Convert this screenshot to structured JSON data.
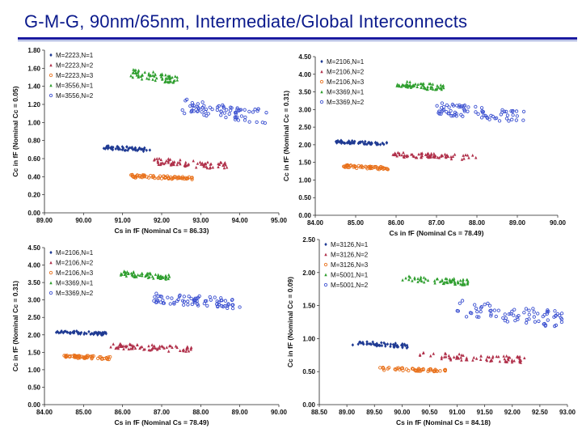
{
  "title": "G-M-G, 90nm/65nm, Intermediate/Global Interconnects",
  "chart_data": [
    {
      "type": "scatter",
      "xlabel": "Cs in fF (Nominal Cs = 86.33)",
      "ylabel": "Cc in fF (Nominal Cc = 0.05)",
      "xlim": [
        89.0,
        95.0
      ],
      "ylim": [
        0.0,
        1.8
      ],
      "xticks": [
        "89.00",
        "90.00",
        "91.00",
        "92.00",
        "93.00",
        "94.00",
        "95.00"
      ],
      "yticks": [
        "0.00",
        "0.20",
        "0.40",
        "0.60",
        "0.80",
        "1.00",
        "1.20",
        "1.40",
        "1.60",
        "1.80"
      ],
      "legend_position": "top-left",
      "series": [
        {
          "name": "M=2223,N=1",
          "color": "#1f3a93",
          "marker": "diamond",
          "x_range": [
            90.5,
            91.7
          ],
          "y_range": [
            0.68,
            0.74
          ],
          "points": 55
        },
        {
          "name": "M=2223,N=2",
          "color": "#b0304a",
          "marker": "triangle",
          "x_range": [
            91.8,
            93.7
          ],
          "y_range": [
            0.49,
            0.6
          ],
          "points": 75
        },
        {
          "name": "M=2223,N=3",
          "color": "#e8701a",
          "marker": "circle",
          "x_range": [
            91.2,
            92.8
          ],
          "y_range": [
            0.37,
            0.42
          ],
          "points": 65
        },
        {
          "name": "M=3556,N=1",
          "color": "#2e9e2e",
          "marker": "triangle",
          "x_range": [
            91.2,
            92.4
          ],
          "y_range": [
            1.44,
            1.58
          ],
          "points": 65
        },
        {
          "name": "M=3556,N=2",
          "color": "#3a4fd0",
          "marker": "circle",
          "x_range": [
            92.5,
            94.7
          ],
          "y_range": [
            1.0,
            1.24
          ],
          "points": 75
        }
      ]
    },
    {
      "type": "scatter",
      "xlabel": "Cs in fF (Nominal Cs = 78.49)",
      "ylabel": "Cc in fF (Nominal Cc = 0.31)",
      "xlim": [
        84.0,
        90.0
      ],
      "ylim": [
        0.0,
        4.5
      ],
      "xticks": [
        "84.00",
        "85.00",
        "86.00",
        "87.00",
        "88.00",
        "89.00",
        "90.00"
      ],
      "yticks": [
        "0.00",
        "0.50",
        "1.00",
        "1.50",
        "2.00",
        "2.50",
        "3.00",
        "3.50",
        "4.00",
        "4.50"
      ],
      "legend_position": "top-left",
      "series": [
        {
          "name": "M=2106,N=1",
          "color": "#1f3a93",
          "marker": "diamond",
          "x_range": [
            84.5,
            85.8
          ],
          "y_range": [
            2.0,
            2.12
          ],
          "points": 60
        },
        {
          "name": "M=2106,N=2",
          "color": "#b0304a",
          "marker": "triangle",
          "x_range": [
            85.9,
            88.0
          ],
          "y_range": [
            1.58,
            1.78
          ],
          "points": 75
        },
        {
          "name": "M=2106,N=3",
          "color": "#e8701a",
          "marker": "circle",
          "x_range": [
            84.7,
            85.8
          ],
          "y_range": [
            1.3,
            1.42
          ],
          "points": 55
        },
        {
          "name": "M=3369,N=1",
          "color": "#2e9e2e",
          "marker": "triangle",
          "x_range": [
            86.0,
            87.2
          ],
          "y_range": [
            3.55,
            3.8
          ],
          "points": 65
        },
        {
          "name": "M=3369,N=2",
          "color": "#3a4fd0",
          "marker": "circle",
          "x_range": [
            87.0,
            89.2
          ],
          "y_range": [
            2.65,
            3.15
          ],
          "points": 75
        }
      ]
    },
    {
      "type": "scatter",
      "xlabel": "Cs in fF (Nominal Cs = 78.49)",
      "ylabel": "Cc in fF (Nominal Cc = 0.31)",
      "xlim": [
        84.0,
        90.0
      ],
      "ylim": [
        0.0,
        4.5
      ],
      "xticks": [
        "84.00",
        "85.00",
        "86.00",
        "87.00",
        "88.00",
        "89.00",
        "90.00"
      ],
      "yticks": [
        "0.00",
        "0.50",
        "1.00",
        "1.50",
        "2.00",
        "2.50",
        "3.00",
        "3.50",
        "4.00",
        "4.50"
      ],
      "legend_position": "top-left",
      "series": [
        {
          "name": "M=2106,N=1",
          "color": "#1f3a93",
          "marker": "diamond",
          "x_range": [
            84.3,
            85.6
          ],
          "y_range": [
            2.0,
            2.12
          ],
          "points": 60
        },
        {
          "name": "M=2106,N=2",
          "color": "#b0304a",
          "marker": "triangle",
          "x_range": [
            85.6,
            87.8
          ],
          "y_range": [
            1.52,
            1.75
          ],
          "points": 75
        },
        {
          "name": "M=2106,N=3",
          "color": "#e8701a",
          "marker": "circle",
          "x_range": [
            84.5,
            85.7
          ],
          "y_range": [
            1.3,
            1.42
          ],
          "points": 55
        },
        {
          "name": "M=3369,N=1",
          "color": "#2e9e2e",
          "marker": "triangle",
          "x_range": [
            85.9,
            87.2
          ],
          "y_range": [
            3.6,
            3.82
          ],
          "points": 65
        },
        {
          "name": "M=3369,N=2",
          "color": "#3a4fd0",
          "marker": "circle",
          "x_range": [
            86.7,
            89.0
          ],
          "y_range": [
            2.75,
            3.2
          ],
          "points": 75
        }
      ]
    },
    {
      "type": "scatter",
      "xlabel": "Cs in fF (Nominal Cs = 84.18)",
      "ylabel": "Cc in fF (Nominal Cc = 0.09)",
      "xlim": [
        88.5,
        93.0
      ],
      "ylim": [
        0.0,
        2.5
      ],
      "xticks": [
        "88.50",
        "89.00",
        "89.50",
        "90.00",
        "90.50",
        "91.00",
        "91.50",
        "92.00",
        "92.50",
        "93.00"
      ],
      "yticks": [
        "0.00",
        "0.50",
        "1.00",
        "1.50",
        "2.00",
        "2.50"
      ],
      "legend_position": "top-left",
      "series": [
        {
          "name": "M=3126,N=1",
          "color": "#1f3a93",
          "marker": "diamond",
          "x_range": [
            89.1,
            90.1
          ],
          "y_range": [
            0.86,
            0.96
          ],
          "points": 50
        },
        {
          "name": "M=3126,N=2",
          "color": "#b0304a",
          "marker": "triangle",
          "x_range": [
            90.3,
            92.3
          ],
          "y_range": [
            0.64,
            0.78
          ],
          "points": 75
        },
        {
          "name": "M=3126,N=3",
          "color": "#e8701a",
          "marker": "circle",
          "x_range": [
            89.6,
            90.8
          ],
          "y_range": [
            0.5,
            0.56
          ],
          "points": 55
        },
        {
          "name": "M=5001,N=1",
          "color": "#2e9e2e",
          "marker": "triangle",
          "x_range": [
            90.0,
            91.2
          ],
          "y_range": [
            1.82,
            1.95
          ],
          "points": 65
        },
        {
          "name": "M=5001,N=2",
          "color": "#3a4fd0",
          "marker": "circle",
          "x_range": [
            91.0,
            92.9
          ],
          "y_range": [
            1.2,
            1.55
          ],
          "points": 75
        }
      ]
    }
  ]
}
